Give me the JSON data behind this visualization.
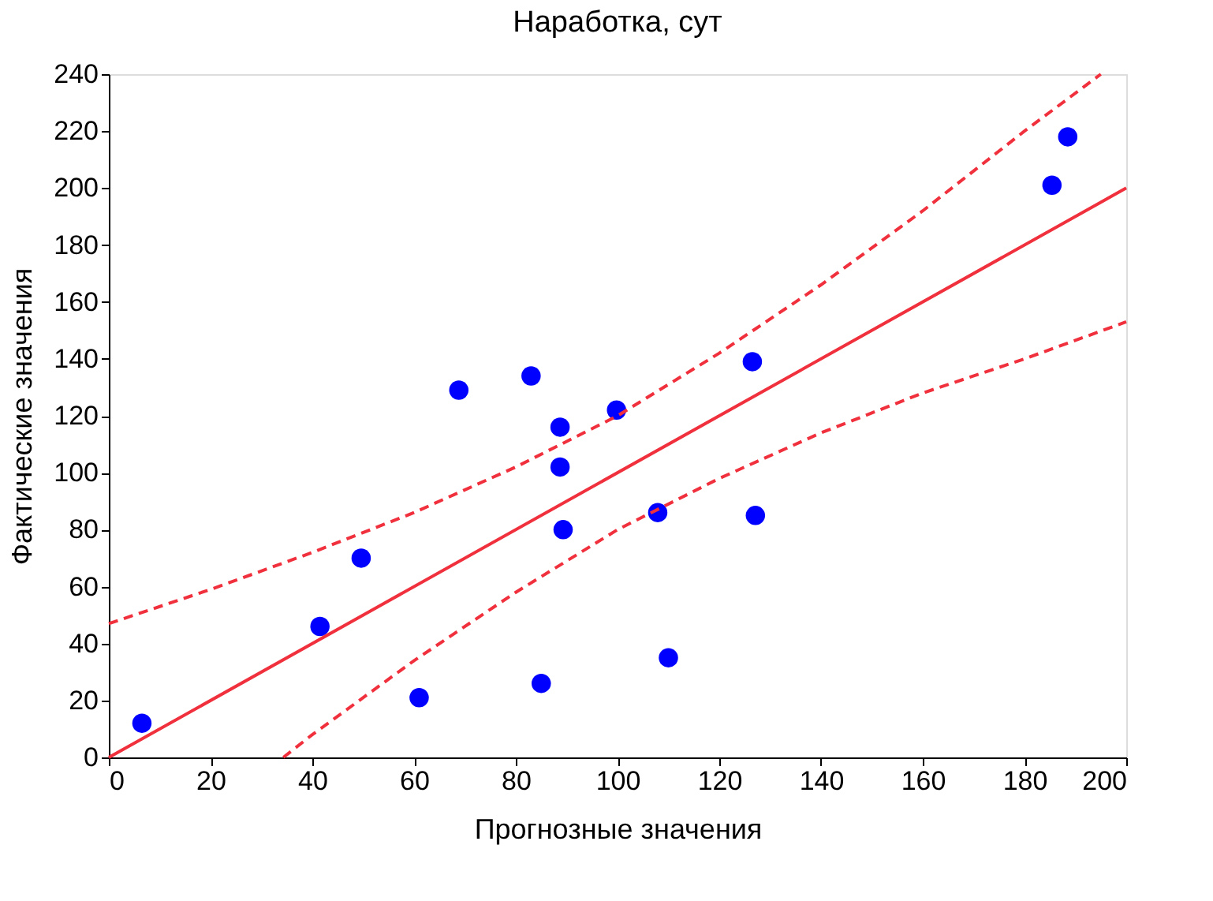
{
  "chart_data": {
    "type": "scatter",
    "title": "Наработка, сут",
    "xlabel": "Прогнозные значения",
    "ylabel": "Фактические значения",
    "xlim": [
      0,
      200
    ],
    "ylim": [
      0,
      240
    ],
    "xticks": [
      0,
      20,
      40,
      60,
      80,
      100,
      120,
      140,
      160,
      180,
      200
    ],
    "yticks": [
      0,
      20,
      40,
      60,
      80,
      100,
      120,
      140,
      160,
      180,
      200,
      220,
      240
    ],
    "grid": false,
    "series": [
      {
        "marker": "circle",
        "color": "#0000ff",
        "x": [
          6.5,
          41.5,
          49.6,
          61,
          68.8,
          83,
          85,
          88.7,
          88.7,
          89.3,
          99.8,
          107.9,
          110,
          126.5,
          127.1,
          185.4,
          188.5
        ],
        "values": [
          12,
          46,
          70,
          21,
          129,
          134,
          26,
          116,
          102,
          80,
          122,
          86,
          35,
          139,
          85,
          201,
          218
        ]
      },
      {
        "type": "line",
        "line_style": "solid",
        "color": "#f0303c",
        "x": [
          0,
          200
        ],
        "values": [
          0,
          200
        ]
      },
      {
        "type": "line",
        "line_style": "dashed",
        "color": "#f0303c",
        "x": [
          0,
          20,
          40,
          60,
          80,
          100,
          120,
          140,
          160,
          180,
          195
        ],
        "values": [
          47,
          59,
          72,
          86,
          102,
          120,
          142,
          166,
          192,
          220,
          240
        ]
      },
      {
        "type": "line",
        "line_style": "dashed",
        "color": "#f0303c",
        "x": [
          34.3,
          40,
          60,
          80,
          100,
          120,
          140,
          160,
          180,
          200
        ],
        "values": [
          0,
          8,
          34,
          58,
          80,
          98,
          114,
          128,
          140,
          153
        ]
      }
    ]
  }
}
